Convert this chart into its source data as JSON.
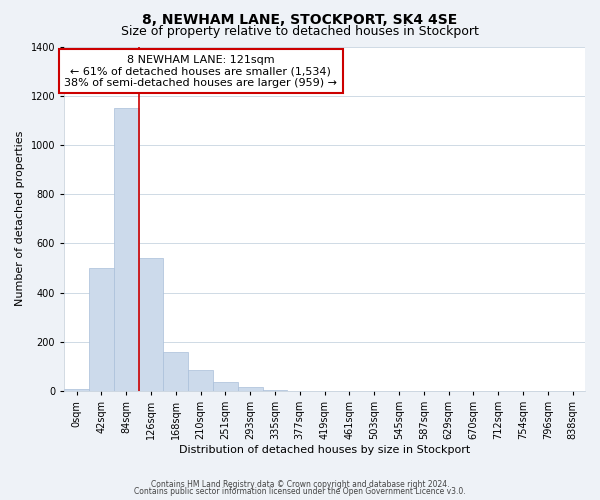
{
  "title": "8, NEWHAM LANE, STOCKPORT, SK4 4SE",
  "subtitle": "Size of property relative to detached houses in Stockport",
  "xlabel": "Distribution of detached houses by size in Stockport",
  "ylabel": "Number of detached properties",
  "bar_labels": [
    "0sqm",
    "42sqm",
    "84sqm",
    "126sqm",
    "168sqm",
    "210sqm",
    "251sqm",
    "293sqm",
    "335sqm",
    "377sqm",
    "419sqm",
    "461sqm",
    "503sqm",
    "545sqm",
    "587sqm",
    "629sqm",
    "670sqm",
    "712sqm",
    "754sqm",
    "796sqm",
    "838sqm"
  ],
  "bar_values": [
    10,
    500,
    1150,
    540,
    160,
    85,
    35,
    18,
    5,
    0,
    0,
    0,
    0,
    0,
    0,
    0,
    0,
    0,
    0,
    0,
    0
  ],
  "bar_color": "#ccdaeb",
  "bar_edge_color": "#aabfda",
  "vline_x": 2.5,
  "vline_color": "#cc0000",
  "ylim": [
    0,
    1400
  ],
  "yticks": [
    0,
    200,
    400,
    600,
    800,
    1000,
    1200,
    1400
  ],
  "annotation_title": "8 NEWHAM LANE: 121sqm",
  "annotation_line1": "← 61% of detached houses are smaller (1,534)",
  "annotation_line2": "38% of semi-detached houses are larger (959) →",
  "annotation_box_facecolor": "#ffffff",
  "annotation_box_edgecolor": "#cc0000",
  "footnote1": "Contains HM Land Registry data © Crown copyright and database right 2024.",
  "footnote2": "Contains public sector information licensed under the Open Government Licence v3.0.",
  "fig_facecolor": "#eef2f7",
  "plot_facecolor": "#ffffff",
  "grid_color": "#c8d4e0",
  "title_fontsize": 10,
  "subtitle_fontsize": 9,
  "axis_label_fontsize": 8,
  "tick_fontsize": 7,
  "annotation_fontsize": 8,
  "footnote_fontsize": 5.5
}
